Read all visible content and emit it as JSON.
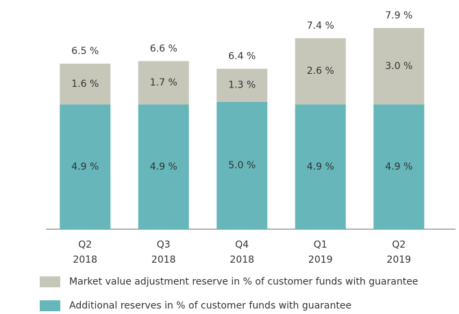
{
  "chart_data": {
    "type": "stacked_bar",
    "categories": [
      "Q2 2018",
      "Q3 2018",
      "Q4 2018",
      "Q1 2019",
      "Q2 2019"
    ],
    "series": [
      {
        "name": "Additional reserves in % of customer funds with guarantee",
        "color": "#67b6b9",
        "values": [
          4.9,
          4.9,
          5.0,
          4.9,
          4.9
        ],
        "value_labels": [
          "4.9 %",
          "4.9 %",
          "5.0 %",
          "4.9 %",
          "4.9 %"
        ]
      },
      {
        "name": "Market value adjustment reserve in % of customer funds with guarantee",
        "color": "#c6c7b9",
        "values": [
          1.6,
          1.7,
          1.3,
          2.6,
          3.0
        ],
        "value_labels": [
          "1.6 %",
          "1.7 %",
          "1.3 %",
          "2.6 %",
          "3.0 %"
        ]
      }
    ],
    "totals": [
      6.5,
      6.6,
      6.4,
      7.4,
      7.9
    ],
    "total_labels": [
      "6.5 %",
      "6.6 %",
      "6.4 %",
      "7.4 %",
      "7.9 %"
    ],
    "ylim": [
      0,
      9
    ]
  }
}
